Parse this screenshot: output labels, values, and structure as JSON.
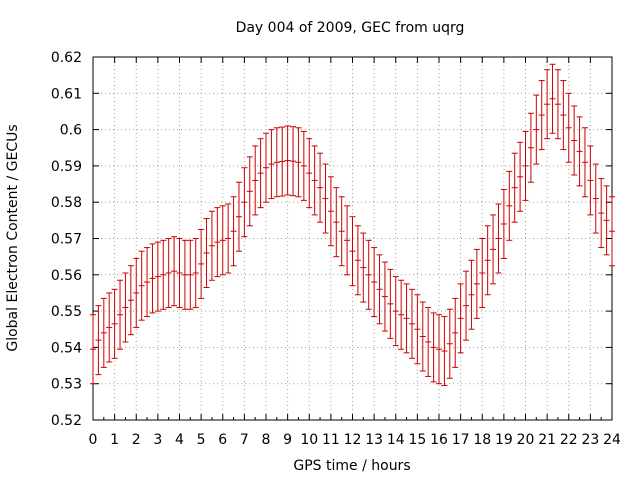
{
  "chart_data": {
    "type": "errorbar",
    "title": "Day 004 of 2009, GEC from uqrg",
    "xlabel": "GPS time / hours",
    "ylabel": "Global Electron Content / GECUs",
    "xlim": [
      0,
      24
    ],
    "ylim": [
      0.52,
      0.62
    ],
    "grid": true,
    "legend": "none",
    "x_ticks": [
      "0",
      "1",
      "2",
      "3",
      "4",
      "5",
      "6",
      "7",
      "8",
      "9",
      "10",
      "11",
      "12",
      "13",
      "14",
      "15",
      "16",
      "17",
      "18",
      "19",
      "20",
      "21",
      "22",
      "23",
      "24"
    ],
    "y_ticks": [
      "0.52",
      "0.53",
      "0.54",
      "0.55",
      "0.56",
      "0.57",
      "0.58",
      "0.59",
      "0.6",
      "0.61",
      "0.62"
    ],
    "series": [
      {
        "name": "GEC",
        "color": "#cc0000",
        "error": 0.0095,
        "x": [
          0,
          0.25,
          0.5,
          0.75,
          1,
          1.25,
          1.5,
          1.75,
          2,
          2.25,
          2.5,
          2.75,
          3,
          3.25,
          3.5,
          3.75,
          4,
          4.25,
          4.5,
          4.75,
          5,
          5.25,
          5.5,
          5.75,
          6,
          6.25,
          6.5,
          6.75,
          7,
          7.25,
          7.5,
          7.75,
          8,
          8.25,
          8.5,
          8.75,
          9,
          9.25,
          9.5,
          9.75,
          10,
          10.25,
          10.5,
          10.75,
          11,
          11.25,
          11.5,
          11.75,
          12,
          12.25,
          12.5,
          12.75,
          13,
          13.25,
          13.5,
          13.75,
          14,
          14.25,
          14.5,
          14.75,
          15,
          15.25,
          15.5,
          15.75,
          16,
          16.25,
          16.5,
          16.75,
          17,
          17.25,
          17.5,
          17.75,
          18,
          18.25,
          18.5,
          18.75,
          19,
          19.25,
          19.5,
          19.75,
          20,
          20.25,
          20.5,
          20.75,
          21,
          21.25,
          21.5,
          21.75,
          22,
          22.25,
          22.5,
          22.75,
          23,
          23.25,
          23.5,
          23.75,
          24
        ],
        "values": [
          0.5395,
          0.542,
          0.544,
          0.5455,
          0.5465,
          0.549,
          0.551,
          0.553,
          0.555,
          0.557,
          0.558,
          0.559,
          0.5595,
          0.56,
          0.5605,
          0.561,
          0.5605,
          0.56,
          0.56,
          0.5605,
          0.563,
          0.566,
          0.568,
          0.569,
          0.5695,
          0.57,
          0.572,
          0.576,
          0.58,
          0.583,
          0.586,
          0.588,
          0.5895,
          0.5905,
          0.591,
          0.5912,
          0.5915,
          0.5913,
          0.591,
          0.59,
          0.588,
          0.586,
          0.584,
          0.581,
          0.5775,
          0.5745,
          0.572,
          0.5695,
          0.5665,
          0.564,
          0.562,
          0.56,
          0.558,
          0.556,
          0.554,
          0.552,
          0.55,
          0.549,
          0.548,
          0.5465,
          0.545,
          0.543,
          0.5415,
          0.54,
          0.5395,
          0.539,
          0.541,
          0.544,
          0.548,
          0.5515,
          0.5545,
          0.5575,
          0.5605,
          0.564,
          0.567,
          0.57,
          0.574,
          0.579,
          0.584,
          0.587,
          0.59,
          0.595,
          0.6,
          0.604,
          0.607,
          0.6085,
          0.607,
          0.604,
          0.6005,
          0.597,
          0.594,
          0.591,
          0.586,
          0.581,
          0.577,
          0.575,
          0.572
        ]
      }
    ]
  }
}
